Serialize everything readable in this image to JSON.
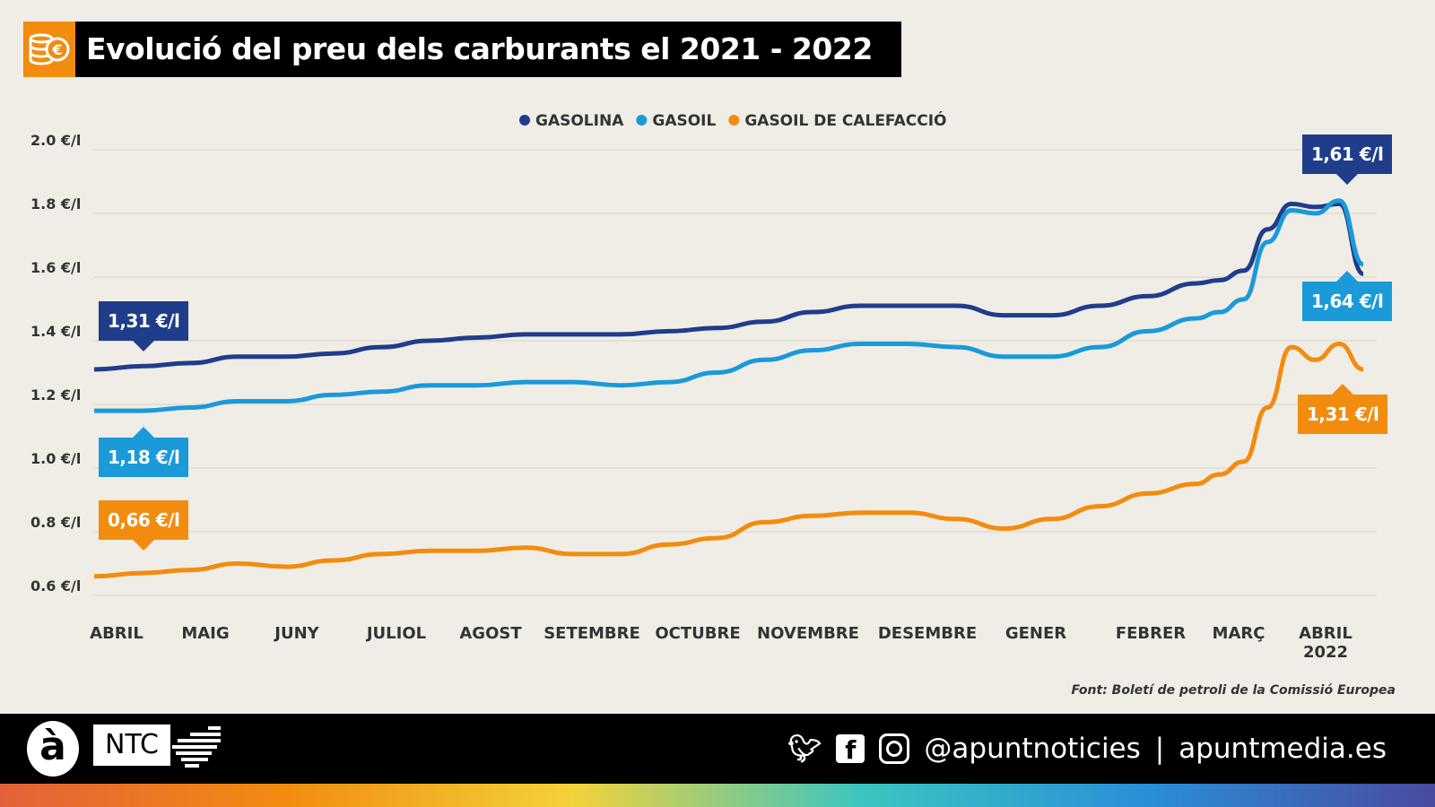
{
  "title": "Evolució del preu dels carburants el 2021 - 2022",
  "source": "Font: Boletí de petroli de la Comissió Europea",
  "footer": {
    "logo": "à",
    "brand": "NTC",
    "handle": "@apuntnoticies",
    "separator": "|",
    "site": "apuntmedia.es",
    "icons": [
      "twitter-icon",
      "facebook-icon",
      "instagram-icon"
    ]
  },
  "chart_data": {
    "type": "line",
    "ylim": [
      0.6,
      2.0
    ],
    "yticks": [
      "0.6 €/l",
      "0.8 €/l",
      "1.0 €/l",
      "1.2 €/l",
      "1.4 €/l",
      "1.6 €/l",
      "1.8 €/l",
      "2.0 €/l"
    ],
    "ytick_values": [
      0.6,
      0.8,
      1.0,
      1.2,
      1.4,
      1.6,
      1.8,
      2.0
    ],
    "xticks": [
      "ABRIL",
      "MAIG",
      "JUNY",
      "JULIOL",
      "AGOST",
      "SETEMBRE",
      "OCTUBRE",
      "NOVEMBRE",
      "DESEMBRE",
      "GENER",
      "FEBRER",
      "MARÇ",
      "ABRIL"
    ],
    "xtick_sub": "2022",
    "grid": true,
    "legend": "top-center",
    "x": [
      "2021-04-05",
      "2021-04-19",
      "2021-05-03",
      "2021-05-17",
      "2021-05-31",
      "2021-06-14",
      "2021-06-28",
      "2021-07-12",
      "2021-07-26",
      "2021-08-09",
      "2021-08-23",
      "2021-09-06",
      "2021-09-20",
      "2021-10-04",
      "2021-10-18",
      "2021-11-01",
      "2021-11-15",
      "2021-11-29",
      "2021-12-13",
      "2021-12-27",
      "2022-01-10",
      "2022-01-24",
      "2022-02-07",
      "2022-02-21",
      "2022-02-28",
      "2022-03-07",
      "2022-03-14",
      "2022-03-21",
      "2022-03-28",
      "2022-04-04",
      "2022-04-11"
    ],
    "series": [
      {
        "name": "GASOLINA",
        "color": "#1f3d8a",
        "values": [
          1.31,
          1.32,
          1.33,
          1.35,
          1.35,
          1.36,
          1.38,
          1.4,
          1.41,
          1.42,
          1.42,
          1.42,
          1.43,
          1.44,
          1.46,
          1.49,
          1.51,
          1.51,
          1.51,
          1.48,
          1.48,
          1.51,
          1.54,
          1.58,
          1.59,
          1.62,
          1.75,
          1.83,
          1.82,
          1.83,
          1.61
        ],
        "first_label": "1,31 €/l",
        "last_label": "1,61 €/l"
      },
      {
        "name": "GASOIL",
        "color": "#1a9ad9",
        "values": [
          1.18,
          1.18,
          1.19,
          1.21,
          1.21,
          1.23,
          1.24,
          1.26,
          1.26,
          1.27,
          1.27,
          1.26,
          1.27,
          1.3,
          1.34,
          1.37,
          1.39,
          1.39,
          1.38,
          1.35,
          1.35,
          1.38,
          1.43,
          1.47,
          1.49,
          1.53,
          1.71,
          1.81,
          1.8,
          1.84,
          1.64
        ],
        "first_label": "1,18 €/l",
        "last_label": "1,64 €/l"
      },
      {
        "name": "GASOIL DE CALEFACCIÓ",
        "color": "#f28c0f",
        "values": [
          0.66,
          0.67,
          0.68,
          0.7,
          0.69,
          0.71,
          0.73,
          0.74,
          0.74,
          0.75,
          0.73,
          0.73,
          0.76,
          0.78,
          0.83,
          0.85,
          0.86,
          0.86,
          0.84,
          0.81,
          0.84,
          0.88,
          0.92,
          0.95,
          0.98,
          1.02,
          1.19,
          1.38,
          1.34,
          1.39,
          1.31
        ],
        "first_label": "0,66 €/l",
        "last_label": "1,31 €/l"
      }
    ]
  }
}
